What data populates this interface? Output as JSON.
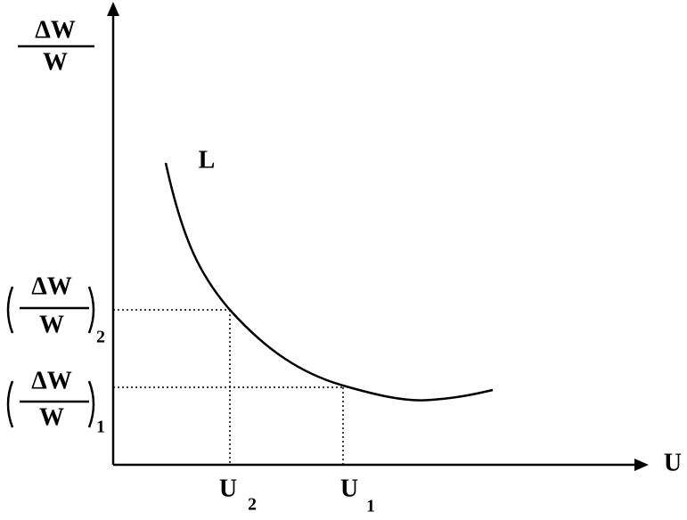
{
  "y_axis": {
    "label": {
      "numerator": "ΔW",
      "denominator": "W"
    }
  },
  "x_axis": {
    "label": "U"
  },
  "curve": {
    "label": "L"
  },
  "x_marks": [
    {
      "base": "U",
      "sub": "2"
    },
    {
      "base": "U",
      "sub": "1"
    }
  ],
  "y_marks": [
    {
      "numerator": "ΔW",
      "denominator": "W",
      "sub": "2"
    },
    {
      "numerator": "ΔW",
      "denominator": "W",
      "sub": "1"
    }
  ]
}
